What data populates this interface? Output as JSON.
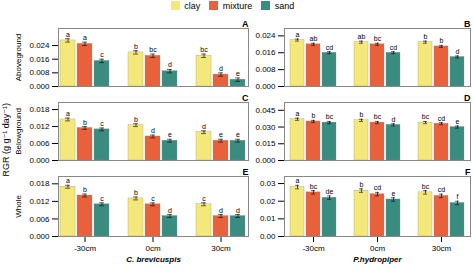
{
  "chart_data": [
    {
      "type": "bar",
      "title": "A",
      "ylabel": "Aboveground",
      "categories": [
        "-30cm",
        "0cm",
        "30cm"
      ],
      "series": [
        {
          "name": "clay",
          "color": "#F5E87A",
          "values": [
            0.027,
            0.02,
            0.018
          ],
          "errors": [
            0.001,
            0.001,
            0.001
          ],
          "letters": [
            "a",
            "b",
            "bc"
          ]
        },
        {
          "name": "mixture",
          "color": "#E8613A",
          "values": [
            0.025,
            0.018,
            0.007
          ],
          "errors": [
            0.001,
            0.001,
            0.001
          ],
          "letters": [
            "a",
            "bc",
            "d"
          ]
        },
        {
          "name": "sand",
          "color": "#3A8C80",
          "values": [
            0.015,
            0.009,
            0.004
          ],
          "errors": [
            0.001,
            0.001,
            0.001
          ],
          "letters": [
            "c",
            "d",
            "e"
          ]
        }
      ],
      "ylim": [
        0,
        0.034
      ],
      "yticks": [
        {
          "value": 0.0,
          "label": "0.000"
        },
        {
          "value": 0.008,
          "label": "0.008"
        },
        {
          "value": 0.016,
          "label": "0.016"
        },
        {
          "value": 0.024,
          "label": "0.024"
        }
      ],
      "tick_labels": "y"
    },
    {
      "type": "bar",
      "title": "B",
      "categories": [
        "-30cm",
        "0cm",
        "30cm"
      ],
      "series": [
        {
          "name": "clay",
          "color": "#F5E87A",
          "values": [
            0.022,
            0.021,
            0.021
          ],
          "errors": [
            0.0005,
            0.0005,
            0.0005
          ],
          "letters": [
            "a",
            "ab",
            "b"
          ]
        },
        {
          "name": "mixture",
          "color": "#E8613A",
          "values": [
            0.02,
            0.02,
            0.019
          ],
          "errors": [
            0.0005,
            0.0005,
            0.0005
          ],
          "letters": [
            "ab",
            "bc",
            "b"
          ]
        },
        {
          "name": "sand",
          "color": "#3A8C80",
          "values": [
            0.016,
            0.016,
            0.014
          ],
          "errors": [
            0.0005,
            0.0005,
            0.0005
          ],
          "letters": [
            "cd",
            "cd",
            "d"
          ]
        }
      ],
      "ylim": [
        0,
        0.0275
      ],
      "yticks": [
        {
          "value": 0.0,
          "label": "0.000"
        },
        {
          "value": 0.008,
          "label": "0.008"
        },
        {
          "value": 0.016,
          "label": "0.016"
        },
        {
          "value": 0.024,
          "label": "0.024"
        }
      ],
      "tick_labels": "y"
    },
    {
      "type": "bar",
      "title": "C",
      "ylabel": "Belowground",
      "categories": [
        "-30cm",
        "0cm",
        "30cm"
      ],
      "series": [
        {
          "name": "clay",
          "color": "#F5E87A",
          "values": [
            0.0145,
            0.0125,
            0.01
          ],
          "errors": [
            0.0005,
            0.0005,
            0.0005
          ],
          "letters": [
            "a",
            "b",
            "d"
          ]
        },
        {
          "name": "mixture",
          "color": "#E8613A",
          "values": [
            0.0115,
            0.0085,
            0.007
          ],
          "errors": [
            0.0005,
            0.0005,
            0.0005
          ],
          "letters": [
            "b",
            "d",
            "e"
          ]
        },
        {
          "name": "sand",
          "color": "#3A8C80",
          "values": [
            0.011,
            0.007,
            0.007
          ],
          "errors": [
            0.0005,
            0.0005,
            0.0005
          ],
          "letters": [
            "c",
            "e",
            "e"
          ]
        }
      ],
      "ylim": [
        0,
        0.0205
      ],
      "yticks": [
        {
          "value": 0.0,
          "label": "0.000"
        },
        {
          "value": 0.006,
          "label": "0.006"
        },
        {
          "value": 0.012,
          "label": "0.012"
        },
        {
          "value": 0.018,
          "label": "0.018"
        }
      ],
      "tick_labels": "y"
    },
    {
      "type": "bar",
      "title": "D",
      "categories": [
        "-30cm",
        "0cm",
        "30cm"
      ],
      "series": [
        {
          "name": "clay",
          "color": "#F5E87A",
          "values": [
            0.037,
            0.036,
            0.034
          ],
          "errors": [
            0.001,
            0.001,
            0.001
          ],
          "letters": [
            "a",
            "b",
            "bc"
          ]
        },
        {
          "name": "mixture",
          "color": "#E8613A",
          "values": [
            0.035,
            0.034,
            0.033
          ],
          "errors": [
            0.001,
            0.001,
            0.001
          ],
          "letters": [
            "b",
            "bc",
            "cd"
          ]
        },
        {
          "name": "sand",
          "color": "#3A8C80",
          "values": [
            0.034,
            0.032,
            0.03
          ],
          "errors": [
            0.001,
            0.001,
            0.001
          ],
          "letters": [
            "bc",
            "d",
            "e"
          ]
        }
      ],
      "ylim": [
        0,
        0.052
      ],
      "yticks": [
        {
          "value": 0.0,
          "label": "0.000"
        },
        {
          "value": 0.015,
          "label": "0.015"
        },
        {
          "value": 0.03,
          "label": "0.030"
        },
        {
          "value": 0.045,
          "label": "0.045"
        }
      ],
      "tick_labels": "y"
    },
    {
      "type": "bar",
      "title": "E",
      "ylabel": "Whole",
      "xlabel": "C. brevicuspis",
      "categories": [
        "-30cm",
        "0cm",
        "30cm"
      ],
      "series": [
        {
          "name": "clay",
          "color": "#F5E87A",
          "values": [
            0.017,
            0.013,
            0.011
          ],
          "errors": [
            0.0005,
            0.0005,
            0.0005
          ],
          "letters": [
            "a",
            "b",
            "c"
          ]
        },
        {
          "name": "mixture",
          "color": "#E8613A",
          "values": [
            0.014,
            0.011,
            0.007
          ],
          "errors": [
            0.0005,
            0.0005,
            0.0005
          ],
          "letters": [
            "b",
            "c",
            "d"
          ]
        },
        {
          "name": "sand",
          "color": "#3A8C80",
          "values": [
            0.011,
            0.007,
            0.007
          ],
          "errors": [
            0.0005,
            0.0005,
            0.0005
          ],
          "letters": [
            "c",
            "d",
            "d"
          ]
        }
      ],
      "ylim": [
        0,
        0.0205
      ],
      "yticks": [
        {
          "value": 0.0,
          "label": "0.000"
        },
        {
          "value": 0.006,
          "label": "0.006"
        },
        {
          "value": 0.012,
          "label": "0.012"
        },
        {
          "value": 0.018,
          "label": "0.018"
        }
      ]
    },
    {
      "type": "bar",
      "title": "F",
      "xlabel": "P.hydropiper",
      "categories": [
        "-30cm",
        "0cm",
        "30cm"
      ],
      "series": [
        {
          "name": "clay",
          "color": "#F5E87A",
          "values": [
            0.028,
            0.026,
            0.025
          ],
          "errors": [
            0.001,
            0.001,
            0.001
          ],
          "letters": [
            "a",
            "b",
            "bc"
          ]
        },
        {
          "name": "mixture",
          "color": "#E8613A",
          "values": [
            0.025,
            0.024,
            0.023
          ],
          "errors": [
            0.001,
            0.001,
            0.001
          ],
          "letters": [
            "bc",
            "cd",
            "cd"
          ]
        },
        {
          "name": "sand",
          "color": "#3A8C80",
          "values": [
            0.022,
            0.021,
            0.019
          ],
          "errors": [
            0.001,
            0.001,
            0.001
          ],
          "letters": [
            "de",
            "e",
            "f"
          ]
        }
      ],
      "ylim": [
        0,
        0.034
      ],
      "yticks": [
        {
          "value": 0.0,
          "label": "0.00"
        },
        {
          "value": 0.01,
          "label": "0.01"
        },
        {
          "value": 0.02,
          "label": "0.02"
        },
        {
          "value": 0.03,
          "label": "0.03"
        }
      ]
    }
  ],
  "ylabel": "RGR (g g⁻¹ day⁻¹)",
  "legend": "top"
}
